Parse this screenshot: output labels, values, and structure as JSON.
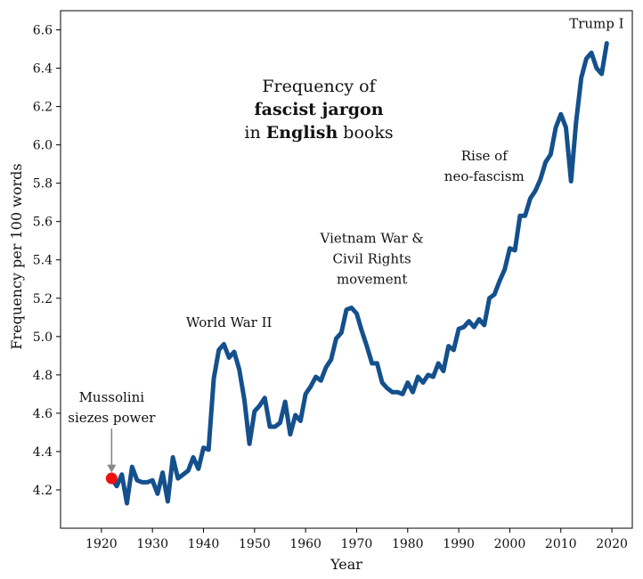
{
  "chart_data": {
    "type": "line",
    "title_lines": [
      [
        {
          "text": "Frequency of",
          "bold": false
        }
      ],
      [
        {
          "text": "fascist jargon",
          "bold": true
        }
      ],
      [
        {
          "text": "in ",
          "bold": false
        },
        {
          "text": "English",
          "bold": true
        },
        {
          "text": " books",
          "bold": false
        }
      ]
    ],
    "xlabel": "Year",
    "ylabel": "Frequency per 100 words",
    "xlim": [
      1912,
      2024
    ],
    "ylim": [
      4.0,
      6.7
    ],
    "xticks": [
      1920,
      1930,
      1940,
      1950,
      1960,
      1970,
      1980,
      1990,
      2000,
      2010,
      2020
    ],
    "yticks": [
      "4.2",
      "4.4",
      "4.6",
      "4.8",
      "5.0",
      "5.2",
      "5.4",
      "5.6",
      "5.8",
      "6.0",
      "6.2",
      "6.4",
      "6.6"
    ],
    "series": [
      {
        "name": "fascist jargon",
        "color": "#14508c",
        "x": [
          1922,
          1923,
          1924,
          1925,
          1926,
          1927,
          1928,
          1929,
          1930,
          1931,
          1932,
          1933,
          1934,
          1935,
          1936,
          1937,
          1938,
          1939,
          1940,
          1941,
          1942,
          1943,
          1944,
          1945,
          1946,
          1947,
          1948,
          1949,
          1950,
          1951,
          1952,
          1953,
          1954,
          1955,
          1956,
          1957,
          1958,
          1959,
          1960,
          1961,
          1962,
          1963,
          1964,
          1965,
          1966,
          1967,
          1968,
          1969,
          1970,
          1971,
          1972,
          1973,
          1974,
          1975,
          1976,
          1977,
          1978,
          1979,
          1980,
          1981,
          1982,
          1983,
          1984,
          1985,
          1986,
          1987,
          1988,
          1989,
          1990,
          1991,
          1992,
          1993,
          1994,
          1995,
          1996,
          1997,
          1998,
          1999,
          2000,
          2001,
          2002,
          2003,
          2004,
          2005,
          2006,
          2007,
          2008,
          2009,
          2010,
          2011,
          2012,
          2013,
          2014,
          2015,
          2016,
          2017,
          2018,
          2019
        ],
        "values": [
          4.26,
          4.22,
          4.28,
          4.13,
          4.32,
          4.25,
          4.24,
          4.24,
          4.25,
          4.18,
          4.29,
          4.14,
          4.37,
          4.26,
          4.28,
          4.3,
          4.37,
          4.31,
          4.42,
          4.41,
          4.78,
          4.93,
          4.96,
          4.89,
          4.92,
          4.83,
          4.67,
          4.44,
          4.61,
          4.64,
          4.68,
          4.53,
          4.53,
          4.55,
          4.66,
          4.49,
          4.59,
          4.56,
          4.7,
          4.74,
          4.79,
          4.77,
          4.84,
          4.88,
          4.99,
          5.02,
          5.14,
          5.15,
          5.12,
          5.03,
          4.95,
          4.86,
          4.86,
          4.76,
          4.73,
          4.71,
          4.71,
          4.7,
          4.76,
          4.71,
          4.79,
          4.76,
          4.8,
          4.79,
          4.86,
          4.82,
          4.95,
          4.93,
          5.04,
          5.05,
          5.08,
          5.05,
          5.09,
          5.06,
          5.2,
          5.22,
          5.29,
          5.35,
          5.46,
          5.45,
          5.63,
          5.63,
          5.72,
          5.76,
          5.82,
          5.91,
          5.95,
          6.09,
          6.16,
          6.09,
          5.81,
          6.12,
          6.35,
          6.45,
          6.48,
          6.4,
          6.37,
          6.53
        ]
      }
    ],
    "marker": {
      "x": 1922,
      "y": 4.26,
      "color": "#ee1111"
    },
    "annotations": [
      {
        "lines": [
          "Mussolini",
          "siezes power"
        ],
        "x": 1922,
        "y": 4.66
      },
      {
        "lines": [
          "World War II"
        ],
        "x": 1945,
        "y": 5.05
      },
      {
        "lines": [
          "Vietnam War &",
          "Civil Rights",
          "movement"
        ],
        "x": 1973,
        "y": 5.49
      },
      {
        "lines": [
          "Rise of",
          "neo-fascism"
        ],
        "x": 1995,
        "y": 5.92
      },
      {
        "lines": [
          "Trump I"
        ],
        "x": 2017,
        "y": 6.61
      }
    ],
    "arrow": {
      "x": 1922,
      "from_y": 4.52,
      "to_y": 4.29,
      "color": "#888888"
    }
  }
}
